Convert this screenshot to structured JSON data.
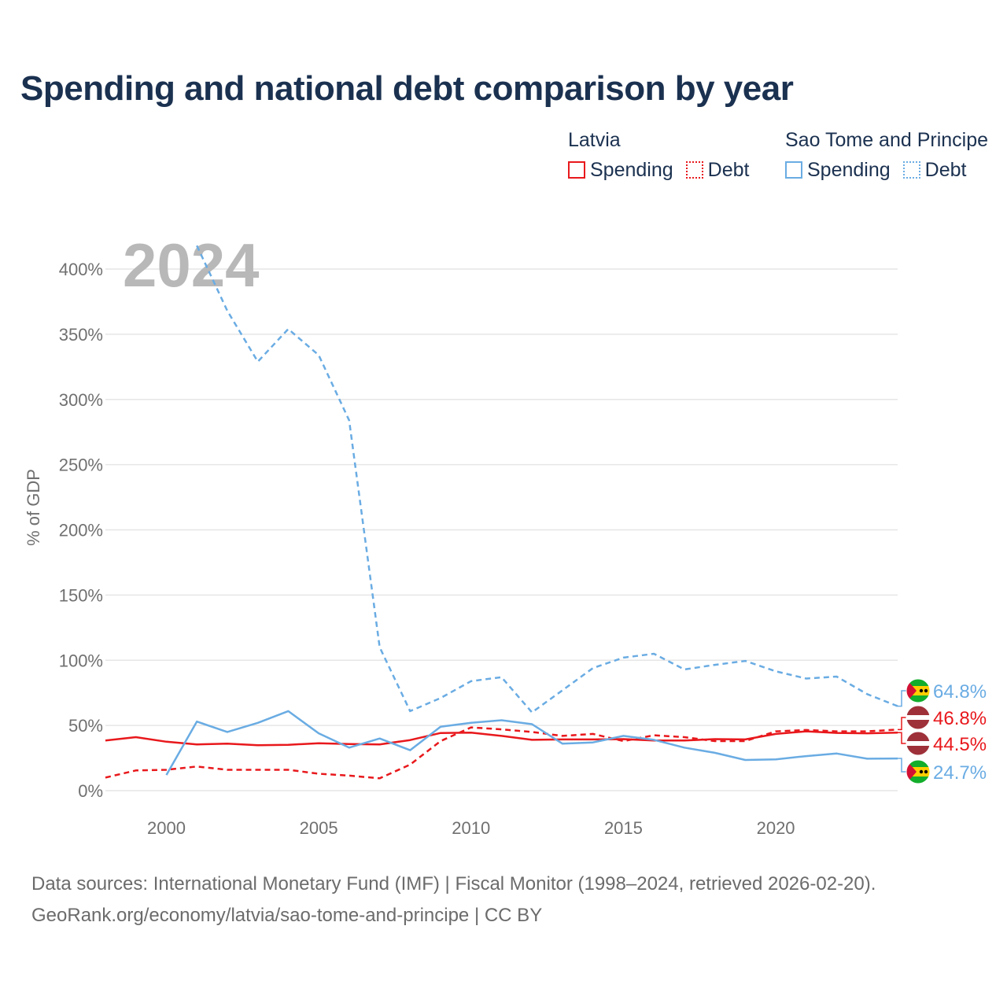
{
  "title": "Spending and national debt comparison by year",
  "legend": {
    "groups": [
      {
        "name": "Latvia",
        "items": [
          {
            "label": "Spending",
            "style": "solid",
            "color": "#e8181c"
          },
          {
            "label": "Debt",
            "style": "dashed",
            "color": "#e8181c"
          }
        ]
      },
      {
        "name": "Sao Tome and Principe",
        "items": [
          {
            "label": "Spending",
            "style": "solid",
            "color": "#6aace3"
          },
          {
            "label": "Debt",
            "style": "dashed",
            "color": "#6aace3"
          }
        ]
      }
    ]
  },
  "footer": {
    "line1": "Data sources: International Monetary Fund (IMF) | Fiscal Monitor (1998–2024, retrieved 2026-02-20).",
    "line2": "GeoRank.org/economy/latvia/sao-tome-and-principe | CC BY"
  },
  "chart_data": {
    "type": "line",
    "current_year_label": "2024",
    "ylabel": "% of GDP",
    "xlim": [
      1998,
      2024
    ],
    "ylim": [
      0,
      400
    ],
    "x_ticks": [
      2000,
      2005,
      2010,
      2015,
      2020
    ],
    "y_ticks": [
      0,
      50,
      100,
      150,
      200,
      250,
      300,
      350,
      400
    ],
    "y_tick_labels": [
      "0%",
      "50%",
      "100%",
      "150%",
      "200%",
      "250%",
      "300%",
      "350%",
      "400%"
    ],
    "colors": {
      "latvia": "#e8181c",
      "stp": "#6aace3"
    },
    "series": [
      {
        "name": "Latvia Spending",
        "country": "latvia",
        "style": "solid",
        "x": [
          1998,
          1999,
          2000,
          2001,
          2002,
          2003,
          2004,
          2005,
          2006,
          2007,
          2008,
          2009,
          2010,
          2011,
          2012,
          2013,
          2014,
          2015,
          2016,
          2017,
          2018,
          2019,
          2020,
          2021,
          2022,
          2023,
          2024
        ],
        "values": [
          38.5,
          41,
          37.5,
          35.5,
          36,
          34.8,
          35.2,
          36.3,
          35.8,
          35.5,
          38.8,
          44.2,
          44.5,
          42,
          39,
          39.3,
          39.3,
          39.5,
          38.5,
          38.5,
          39.5,
          39.3,
          43.5,
          45.5,
          44.3,
          44,
          44.5
        ]
      },
      {
        "name": "Latvia Debt",
        "country": "latvia",
        "style": "dashed",
        "x": [
          1998,
          1999,
          2000,
          2001,
          2002,
          2003,
          2004,
          2005,
          2006,
          2007,
          2008,
          2009,
          2010,
          2011,
          2012,
          2013,
          2014,
          2015,
          2016,
          2017,
          2018,
          2019,
          2020,
          2021,
          2022,
          2023,
          2024
        ],
        "values": [
          10,
          15.5,
          16,
          18.5,
          16,
          16,
          16,
          13,
          11.5,
          9.5,
          20,
          38,
          48.5,
          47,
          45,
          42,
          43.5,
          38,
          42.5,
          41,
          38,
          38,
          45.5,
          46.5,
          45.5,
          45.5,
          46.8
        ]
      },
      {
        "name": "Sao Tome and Principe Spending",
        "country": "stp",
        "style": "solid",
        "x": [
          2000,
          2001,
          2002,
          2003,
          2004,
          2005,
          2006,
          2007,
          2008,
          2009,
          2010,
          2011,
          2012,
          2013,
          2014,
          2015,
          2016,
          2017,
          2018,
          2019,
          2020,
          2021,
          2022,
          2023,
          2024
        ],
        "values": [
          12,
          53,
          45,
          52,
          61,
          44,
          33,
          40,
          31,
          49,
          52,
          54,
          51,
          36,
          37,
          42,
          39,
          33,
          29,
          23.5,
          24,
          26.5,
          28.5,
          24.5,
          24.7
        ]
      },
      {
        "name": "Sao Tome and Principe Debt",
        "country": "stp",
        "style": "dashed",
        "x": [
          2001,
          2002,
          2003,
          2004,
          2005,
          2006,
          2007,
          2008,
          2009,
          2010,
          2011,
          2012,
          2013,
          2014,
          2015,
          2016,
          2017,
          2018,
          2019,
          2020,
          2021,
          2022,
          2023,
          2024
        ],
        "values": [
          418,
          368,
          329,
          354,
          334,
          284,
          110,
          61,
          71,
          84,
          87,
          60,
          77,
          94,
          102,
          105,
          93,
          96.5,
          99.5,
          91.5,
          86,
          87.5,
          74,
          64.8
        ]
      }
    ],
    "end_labels": [
      {
        "series": "Sao Tome and Principe Debt",
        "country": "stp",
        "text": "64.8%"
      },
      {
        "series": "Latvia Debt",
        "country": "latvia",
        "text": "46.8%"
      },
      {
        "series": "Latvia Spending",
        "country": "latvia",
        "text": "44.5%"
      },
      {
        "series": "Sao Tome and Principe Spending",
        "country": "stp",
        "text": "24.7%"
      }
    ]
  }
}
